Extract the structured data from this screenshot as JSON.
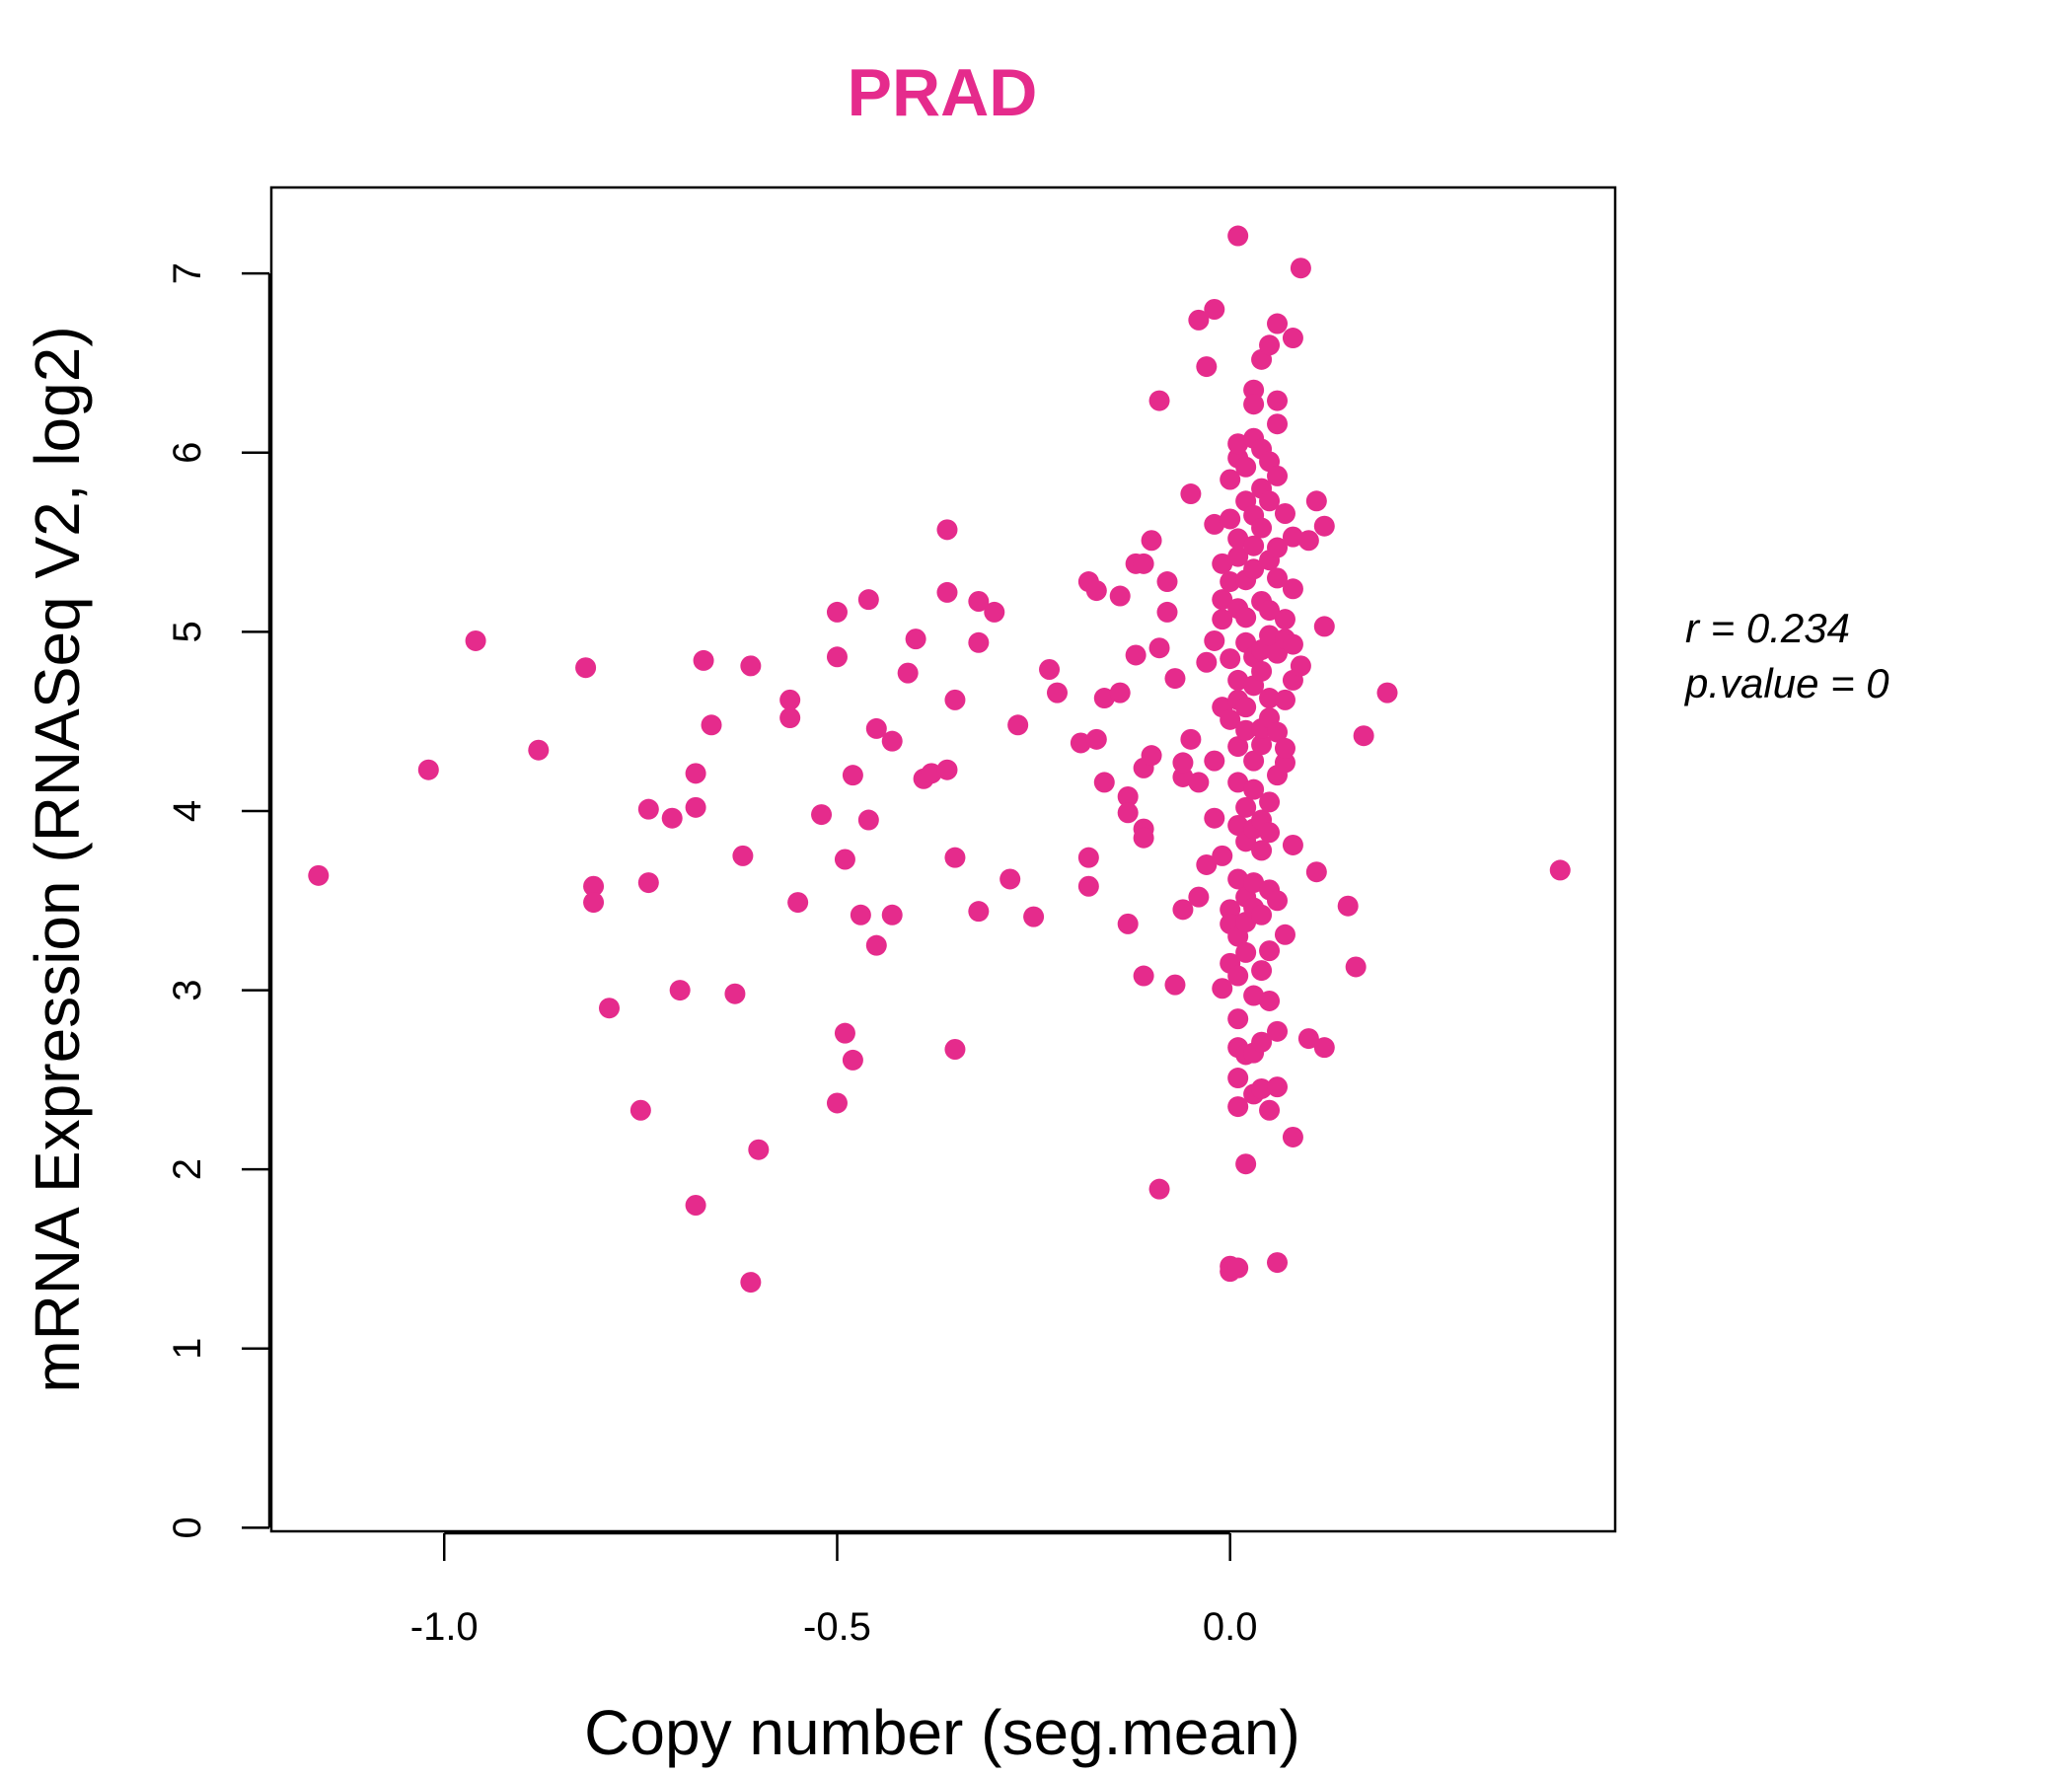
{
  "colors": {
    "accent": "#E52B8C"
  },
  "chart_data": {
    "type": "scatter",
    "title": "PRAD",
    "xlabel": "Copy number (seg.mean)",
    "ylabel": "mRNA Expression (RNASeq V2, log2)",
    "xlim": [
      -1.22,
      0.49
    ],
    "ylim": [
      -0.02,
      7.48
    ],
    "xticks": [
      -1.0,
      -0.5,
      0.0
    ],
    "xtick_labels": [
      "-1.0",
      "-0.5",
      "0.0"
    ],
    "yticks": [
      0,
      1,
      2,
      3,
      4,
      5,
      6,
      7
    ],
    "ytick_labels": [
      "0",
      "1",
      "2",
      "3",
      "4",
      "5",
      "6",
      "7"
    ],
    "grid": false,
    "annotation": {
      "r": "r = 0.234",
      "p": "p.value = 0"
    },
    "points": [
      [
        -1.16,
        3.64
      ],
      [
        -1.02,
        4.23
      ],
      [
        -0.96,
        4.95
      ],
      [
        -0.88,
        4.34
      ],
      [
        -0.82,
        4.8
      ],
      [
        -0.81,
        3.58
      ],
      [
        -0.81,
        3.49
      ],
      [
        -0.79,
        2.9
      ],
      [
        -0.75,
        2.33
      ],
      [
        -0.74,
        4.01
      ],
      [
        -0.74,
        3.6
      ],
      [
        -0.71,
        3.96
      ],
      [
        -0.7,
        3.0
      ],
      [
        -0.68,
        4.21
      ],
      [
        -0.68,
        4.02
      ],
      [
        -0.68,
        1.8
      ],
      [
        -0.67,
        4.84
      ],
      [
        -0.66,
        4.48
      ],
      [
        -0.63,
        2.98
      ],
      [
        -0.62,
        3.75
      ],
      [
        -0.61,
        4.81
      ],
      [
        -0.61,
        1.37
      ],
      [
        -0.6,
        2.11
      ],
      [
        -0.56,
        4.52
      ],
      [
        -0.56,
        4.62
      ],
      [
        -0.55,
        3.49
      ],
      [
        -0.52,
        3.98
      ],
      [
        -0.5,
        4.86
      ],
      [
        -0.5,
        2.37
      ],
      [
        -0.5,
        5.11
      ],
      [
        -0.49,
        3.73
      ],
      [
        -0.49,
        2.76
      ],
      [
        -0.48,
        4.2
      ],
      [
        -0.48,
        2.61
      ],
      [
        -0.47,
        3.42
      ],
      [
        -0.46,
        5.18
      ],
      [
        -0.46,
        3.95
      ],
      [
        -0.45,
        4.46
      ],
      [
        -0.45,
        3.25
      ],
      [
        -0.43,
        4.39
      ],
      [
        -0.43,
        3.42
      ],
      [
        -0.41,
        4.77
      ],
      [
        -0.4,
        4.96
      ],
      [
        -0.39,
        4.18
      ],
      [
        -0.38,
        4.21
      ],
      [
        -0.36,
        5.57
      ],
      [
        -0.36,
        4.23
      ],
      [
        -0.36,
        5.22
      ],
      [
        -0.35,
        4.62
      ],
      [
        -0.35,
        3.74
      ],
      [
        -0.35,
        2.67
      ],
      [
        -0.32,
        4.94
      ],
      [
        -0.32,
        5.17
      ],
      [
        -0.32,
        3.44
      ],
      [
        -0.3,
        5.11
      ],
      [
        -0.28,
        3.62
      ],
      [
        -0.27,
        4.48
      ],
      [
        -0.25,
        3.41
      ],
      [
        -0.23,
        4.79
      ],
      [
        -0.22,
        4.66
      ],
      [
        -0.19,
        4.38
      ],
      [
        -0.18,
        5.28
      ],
      [
        -0.18,
        3.74
      ],
      [
        -0.18,
        3.58
      ],
      [
        -0.17,
        5.23
      ],
      [
        -0.17,
        4.4
      ],
      [
        -0.16,
        4.63
      ],
      [
        -0.16,
        4.16
      ],
      [
        -0.14,
        4.66
      ],
      [
        -0.14,
        5.2
      ],
      [
        -0.13,
        4.08
      ],
      [
        -0.13,
        3.99
      ],
      [
        -0.13,
        3.37
      ],
      [
        -0.12,
        5.38
      ],
      [
        -0.12,
        4.87
      ],
      [
        -0.11,
        5.38
      ],
      [
        -0.11,
        4.24
      ],
      [
        -0.11,
        3.9
      ],
      [
        -0.11,
        3.08
      ],
      [
        -0.11,
        3.85
      ],
      [
        -0.1,
        5.51
      ],
      [
        -0.1,
        4.31
      ],
      [
        -0.09,
        6.29
      ],
      [
        -0.09,
        4.91
      ],
      [
        -0.09,
        1.89
      ],
      [
        -0.08,
        5.28
      ],
      [
        -0.08,
        5.11
      ],
      [
        -0.07,
        4.74
      ],
      [
        -0.07,
        3.03
      ],
      [
        -0.06,
        4.19
      ],
      [
        -0.06,
        3.45
      ],
      [
        -0.06,
        4.27
      ],
      [
        -0.05,
        4.4
      ],
      [
        -0.05,
        5.77
      ],
      [
        -0.04,
        3.52
      ],
      [
        -0.04,
        4.16
      ],
      [
        -0.04,
        6.74
      ],
      [
        -0.03,
        3.7
      ],
      [
        -0.03,
        6.48
      ],
      [
        -0.03,
        4.83
      ],
      [
        -0.02,
        5.6
      ],
      [
        -0.02,
        4.95
      ],
      [
        -0.02,
        4.28
      ],
      [
        -0.02,
        3.96
      ],
      [
        -0.02,
        6.8
      ],
      [
        -0.01,
        5.38
      ],
      [
        -0.01,
        5.07
      ],
      [
        -0.01,
        4.58
      ],
      [
        -0.01,
        3.01
      ],
      [
        -0.01,
        5.18
      ],
      [
        -0.01,
        3.75
      ],
      [
        0.0,
        5.85
      ],
      [
        0.0,
        5.28
      ],
      [
        0.0,
        4.51
      ],
      [
        0.0,
        3.45
      ],
      [
        0.0,
        3.15
      ],
      [
        0.0,
        1.46
      ],
      [
        0.0,
        1.43
      ],
      [
        0.0,
        5.63
      ],
      [
        0.0,
        4.85
      ],
      [
        0.0,
        3.37
      ],
      [
        0.01,
        7.21
      ],
      [
        0.01,
        5.97
      ],
      [
        0.01,
        5.42
      ],
      [
        0.01,
        4.73
      ],
      [
        0.01,
        4.36
      ],
      [
        0.01,
        3.92
      ],
      [
        0.01,
        3.3
      ],
      [
        0.01,
        2.68
      ],
      [
        0.01,
        2.51
      ],
      [
        0.01,
        2.35
      ],
      [
        0.01,
        1.45
      ],
      [
        0.01,
        6.05
      ],
      [
        0.01,
        5.52
      ],
      [
        0.01,
        5.13
      ],
      [
        0.01,
        4.62
      ],
      [
        0.01,
        4.16
      ],
      [
        0.01,
        3.62
      ],
      [
        0.01,
        3.08
      ],
      [
        0.01,
        2.84
      ],
      [
        0.02,
        5.73
      ],
      [
        0.02,
        5.29
      ],
      [
        0.02,
        4.94
      ],
      [
        0.02,
        4.45
      ],
      [
        0.02,
        4.02
      ],
      [
        0.02,
        3.52
      ],
      [
        0.02,
        3.21
      ],
      [
        0.02,
        2.64
      ],
      [
        0.02,
        2.03
      ],
      [
        0.02,
        5.92
      ],
      [
        0.02,
        5.08
      ],
      [
        0.02,
        4.58
      ],
      [
        0.02,
        3.83
      ],
      [
        0.02,
        3.38
      ],
      [
        0.03,
        6.35
      ],
      [
        0.03,
        6.08
      ],
      [
        0.03,
        5.65
      ],
      [
        0.03,
        5.35
      ],
      [
        0.03,
        4.86
      ],
      [
        0.03,
        4.28
      ],
      [
        0.03,
        3.9
      ],
      [
        0.03,
        3.46
      ],
      [
        0.03,
        2.97
      ],
      [
        0.03,
        2.65
      ],
      [
        0.03,
        2.42
      ],
      [
        0.03,
        6.27
      ],
      [
        0.03,
        5.48
      ],
      [
        0.03,
        4.7
      ],
      [
        0.03,
        4.12
      ],
      [
        0.03,
        3.6
      ],
      [
        0.04,
        6.52
      ],
      [
        0.04,
        5.8
      ],
      [
        0.04,
        5.17
      ],
      [
        0.04,
        4.78
      ],
      [
        0.04,
        4.37
      ],
      [
        0.04,
        3.95
      ],
      [
        0.04,
        3.42
      ],
      [
        0.04,
        3.11
      ],
      [
        0.04,
        2.71
      ],
      [
        0.04,
        2.45
      ],
      [
        0.04,
        6.02
      ],
      [
        0.04,
        5.58
      ],
      [
        0.04,
        4.9
      ],
      [
        0.04,
        4.46
      ],
      [
        0.04,
        3.78
      ],
      [
        0.05,
        6.6
      ],
      [
        0.05,
        5.95
      ],
      [
        0.05,
        5.4
      ],
      [
        0.05,
        4.98
      ],
      [
        0.05,
        4.52
      ],
      [
        0.05,
        4.05
      ],
      [
        0.05,
        3.56
      ],
      [
        0.05,
        3.22
      ],
      [
        0.05,
        2.94
      ],
      [
        0.05,
        2.33
      ],
      [
        0.05,
        5.73
      ],
      [
        0.05,
        5.12
      ],
      [
        0.05,
        4.63
      ],
      [
        0.05,
        3.88
      ],
      [
        0.06,
        6.29
      ],
      [
        0.06,
        5.87
      ],
      [
        0.06,
        5.47
      ],
      [
        0.06,
        4.88
      ],
      [
        0.06,
        4.2
      ],
      [
        0.06,
        3.5
      ],
      [
        0.06,
        2.77
      ],
      [
        0.06,
        2.46
      ],
      [
        0.06,
        1.48
      ],
      [
        0.06,
        6.72
      ],
      [
        0.06,
        6.16
      ],
      [
        0.06,
        5.3
      ],
      [
        0.06,
        4.44
      ],
      [
        0.07,
        5.66
      ],
      [
        0.07,
        5.07
      ],
      [
        0.07,
        4.62
      ],
      [
        0.07,
        4.27
      ],
      [
        0.07,
        3.31
      ],
      [
        0.07,
        4.96
      ],
      [
        0.07,
        4.35
      ],
      [
        0.08,
        5.24
      ],
      [
        0.08,
        4.73
      ],
      [
        0.08,
        3.81
      ],
      [
        0.08,
        2.18
      ],
      [
        0.08,
        6.64
      ],
      [
        0.08,
        5.53
      ],
      [
        0.08,
        4.93
      ],
      [
        0.09,
        7.03
      ],
      [
        0.09,
        4.81
      ],
      [
        0.1,
        2.73
      ],
      [
        0.1,
        5.51
      ],
      [
        0.11,
        5.73
      ],
      [
        0.11,
        3.66
      ],
      [
        0.12,
        5.03
      ],
      [
        0.12,
        2.68
      ],
      [
        0.12,
        5.59
      ],
      [
        0.15,
        3.47
      ],
      [
        0.16,
        3.13
      ],
      [
        0.17,
        4.42
      ],
      [
        0.2,
        4.66
      ],
      [
        0.42,
        3.67
      ]
    ]
  }
}
